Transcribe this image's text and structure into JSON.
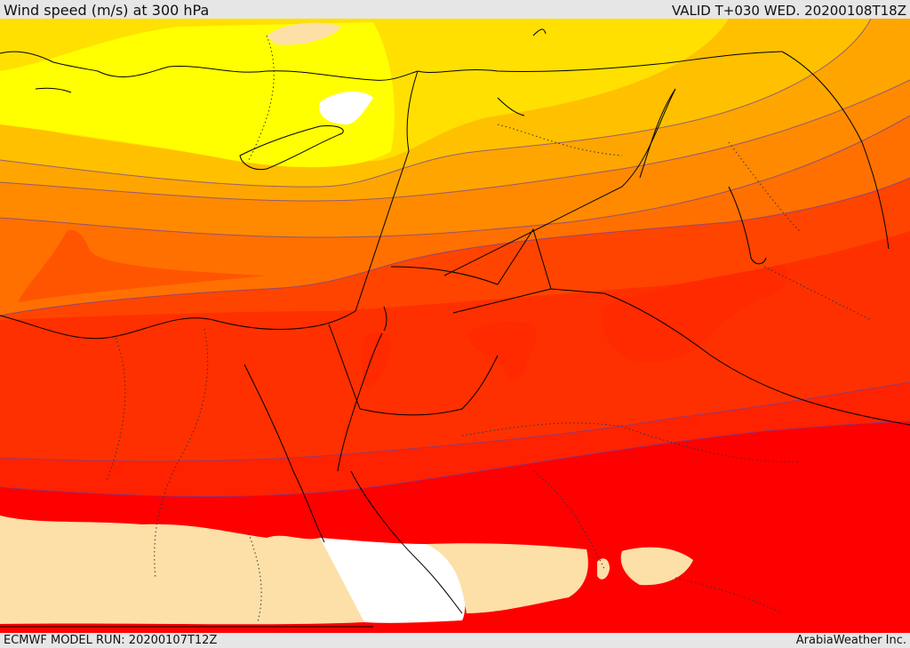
{
  "header": {
    "title": "Wind speed (m/s) at 300 hPa",
    "valid_time": "VALID T+030 WED. 20200108T18Z"
  },
  "footer": {
    "model_run": "ECMWF MODEL RUN: 20200107T12Z",
    "credit": "ArabiaWeather Inc."
  },
  "map": {
    "variable": "wind speed",
    "level": "300 hPa",
    "fill_colors": [
      "#ffffff",
      "#ffff00",
      "#ffe000",
      "#ffc000",
      "#ffa000",
      "#ff8000",
      "#ff6000",
      "#ff4400",
      "#ff2a00",
      "#ff0000",
      "#fddfa8"
    ],
    "border_color": "#000000",
    "contour_color": "#6a3fa0"
  }
}
